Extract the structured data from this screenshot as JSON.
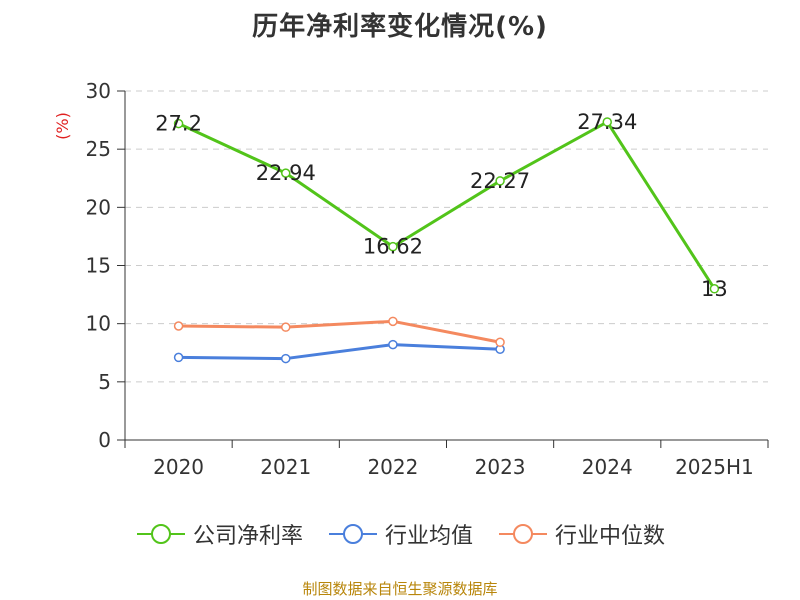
{
  "title": "历年净利率变化情况(%)",
  "source": "制图数据来自恒生聚源数据库",
  "chart_data": {
    "type": "line",
    "categories": [
      "2020",
      "2021",
      "2022",
      "2023",
      "2024",
      "2025H1"
    ],
    "ylabel": "(%)",
    "ylim": [
      0,
      30
    ],
    "yticks": [
      0,
      5,
      10,
      15,
      20,
      25,
      30
    ],
    "grid": true,
    "legend_position": "bottom",
    "series": [
      {
        "name": "公司净利率",
        "color": "#52c41a",
        "values": [
          27.2,
          22.94,
          16.62,
          22.27,
          27.34,
          13
        ],
        "labels": [
          "27.2",
          "22.94",
          "16.62",
          "22.27",
          "27.34",
          "13"
        ]
      },
      {
        "name": "行业均值",
        "color": "#4a7fdc",
        "values": [
          7.1,
          7.0,
          8.2,
          7.8,
          null,
          null
        ]
      },
      {
        "name": "行业中位数",
        "color": "#f4895f",
        "values": [
          9.8,
          9.7,
          10.2,
          8.4,
          null,
          null
        ]
      }
    ]
  }
}
